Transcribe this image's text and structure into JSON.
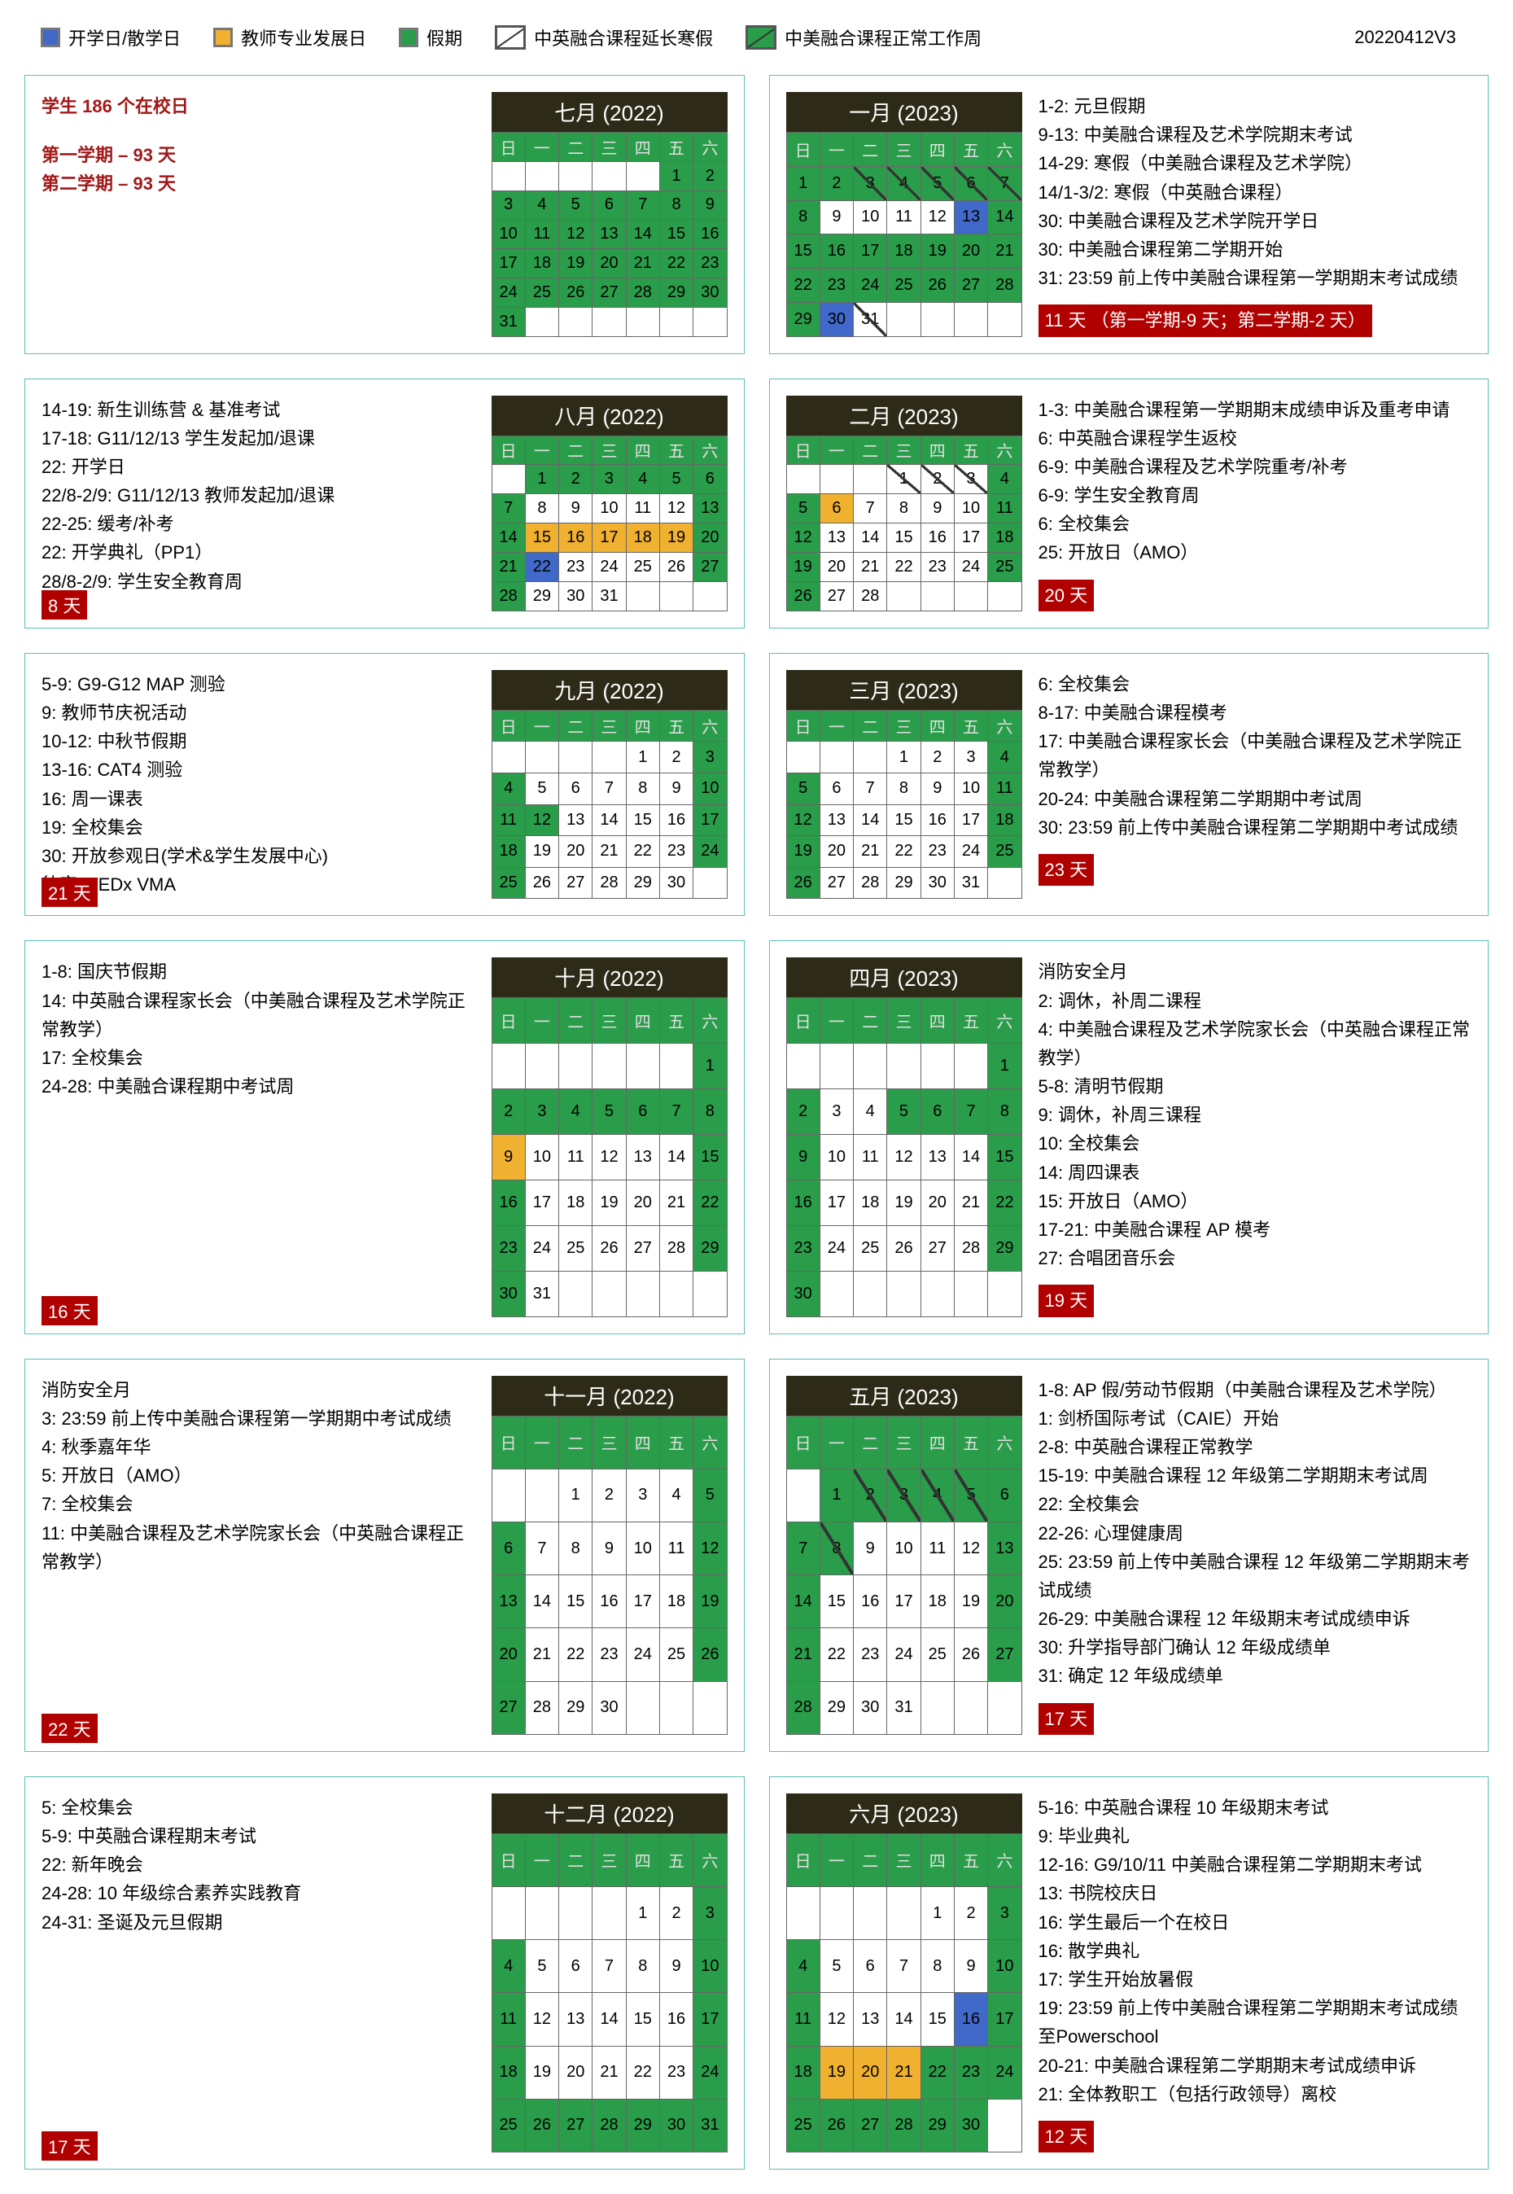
{
  "legend": {
    "school_day": "开学日/散学日",
    "teacher_dev": "教师专业发展日",
    "holiday": "假期",
    "ext_winter": "中英融合课程延长寒假",
    "normal_work": "中美融合课程正常工作周",
    "version": "20220412V3"
  },
  "summary": {
    "total": "学生 186 个在校日",
    "sem1": "第一学期 – 93 天",
    "sem2": "第二学期 – 93 天"
  },
  "dowZh": [
    "日",
    "一",
    "二",
    "三",
    "四",
    "五",
    "六"
  ],
  "months": [
    {
      "title": "七月 (2022)",
      "start": 5,
      "days": 31,
      "styles": {
        "default": "c-g"
      },
      "notesLeft": "",
      "notesRight": "",
      "badge": ""
    },
    {
      "title": "一月 (2023)",
      "start": 0,
      "days": 31,
      "styles": {
        "1": "c-g",
        "2": "c-g",
        "3": "c-dg",
        "4": "c-dg",
        "5": "c-dg",
        "6": "c-dg",
        "7": "c-dg",
        "8": "c-g",
        "9": "c-w",
        "10": "c-w",
        "11": "c-w",
        "12": "c-w",
        "13": "c-b",
        "14": "c-g",
        "15": "c-g",
        "16": "c-g",
        "17": "c-g",
        "18": "c-g",
        "19": "c-g",
        "20": "c-g",
        "21": "c-g",
        "22": "c-g",
        "23": "c-g",
        "24": "c-g",
        "25": "c-g",
        "26": "c-g",
        "27": "c-g",
        "28": "c-g",
        "29": "c-g",
        "30": "c-b",
        "31": "c-dw"
      },
      "notesRight": "1-2: 元旦假期\n9-13: 中美融合课程及艺术学院期末考试\n14-29: 寒假（中美融合课程及艺术学院）\n14/1-3/2: 寒假（中英融合课程）\n30: 中美融合课程及艺术学院开学日\n30: 中美融合课程第二学期开始\n31: 23:59 前上传中美融合课程第一学期期末考试成绩",
      "badge": "11 天 （第一学期-9 天；第二学期-2 天）"
    },
    {
      "title": "八月 (2022)",
      "start": 1,
      "days": 31,
      "styles": {
        "1": "c-g",
        "2": "c-g",
        "3": "c-g",
        "4": "c-g",
        "5": "c-g",
        "6": "c-g",
        "7": "c-g",
        "8": "c-w",
        "9": "c-w",
        "10": "c-w",
        "11": "c-w",
        "12": "c-w",
        "13": "c-g",
        "14": "c-g",
        "15": "c-y",
        "16": "c-y",
        "17": "c-y",
        "18": "c-y",
        "19": "c-y",
        "20": "c-g",
        "21": "c-g",
        "22": "c-b",
        "23": "c-w",
        "24": "c-w",
        "25": "c-w",
        "26": "c-w",
        "27": "c-g",
        "28": "c-g",
        "29": "c-w",
        "30": "c-w",
        "31": "c-w"
      },
      "notesLeft": "14-19: 新生训练营 & 基准考试\n17-18: G11/12/13 学生发起加/退课\n22: 开学日\n22/8-2/9: G11/12/13 教师发起加/退课\n22-25: 缓考/补考\n22: 开学典礼（PP1）\n28/8-2/9: 学生安全教育周",
      "badge": "8 天"
    },
    {
      "title": "二月 (2023)",
      "start": 3,
      "days": 28,
      "styles": {
        "1": "c-dw",
        "2": "c-dw",
        "3": "c-dw",
        "4": "c-g",
        "5": "c-g",
        "6": "c-y",
        "7": "c-w",
        "8": "c-w",
        "9": "c-w",
        "10": "c-w",
        "11": "c-g",
        "12": "c-g",
        "13": "c-w",
        "14": "c-w",
        "15": "c-w",
        "16": "c-w",
        "17": "c-w",
        "18": "c-g",
        "19": "c-g",
        "20": "c-w",
        "21": "c-w",
        "22": "c-w",
        "23": "c-w",
        "24": "c-w",
        "25": "c-g",
        "26": "c-g",
        "27": "c-w",
        "28": "c-w"
      },
      "notesRight": "1-3: 中美融合课程第一学期期末成绩申诉及重考申请\n6: 中英融合课程学生返校\n6-9: 中美融合课程及艺术学院重考/补考\n6-9: 学生安全教育周\n6: 全校集会\n25: 开放日（AMO）",
      "badge": "20 天"
    },
    {
      "title": "九月 (2022)",
      "start": 4,
      "days": 30,
      "styles": {
        "1": "c-w",
        "2": "c-w",
        "3": "c-g",
        "4": "c-g",
        "5": "c-w",
        "6": "c-w",
        "7": "c-w",
        "8": "c-w",
        "9": "c-w",
        "10": "c-g",
        "11": "c-g",
        "12": "c-g",
        "13": "c-w",
        "14": "c-w",
        "15": "c-w",
        "16": "c-w",
        "17": "c-g",
        "18": "c-g",
        "19": "c-w",
        "20": "c-w",
        "21": "c-w",
        "22": "c-w",
        "23": "c-w",
        "24": "c-g",
        "25": "c-g",
        "26": "c-w",
        "27": "c-w",
        "28": "c-w",
        "29": "c-w",
        "30": "c-w"
      },
      "notesLeft": "5-9:  G9-G12 MAP 测验\n9: 教师节庆祝活动\n10-12: 中秋节假期\n13-16: CAT4 测验\n16: 周一课表\n19: 全校集会\n30: 开放参观日(学术&学生发展中心)\n待定:  TEDx VMA",
      "badge": "21 天"
    },
    {
      "title": "三月 (2023)",
      "start": 3,
      "days": 31,
      "styles": {
        "1": "c-w",
        "2": "c-w",
        "3": "c-w",
        "4": "c-g",
        "5": "c-g",
        "6": "c-w",
        "7": "c-w",
        "8": "c-w",
        "9": "c-w",
        "10": "c-w",
        "11": "c-g",
        "12": "c-g",
        "13": "c-w",
        "14": "c-w",
        "15": "c-w",
        "16": "c-w",
        "17": "c-w",
        "18": "c-g",
        "19": "c-g",
        "20": "c-w",
        "21": "c-w",
        "22": "c-w",
        "23": "c-w",
        "24": "c-w",
        "25": "c-g",
        "26": "c-g",
        "27": "c-w",
        "28": "c-w",
        "29": "c-w",
        "30": "c-w",
        "31": "c-w"
      },
      "notesRight": "6: 全校集会\n8-17: 中美融合课程模考\n17: 中美融合课程家长会（中美融合课程及艺术学院正常教学）\n20-24: 中美融合课程第二学期期中考试周\n30: 23:59 前上传中美融合课程第二学期期中考试成绩",
      "badge": "23 天"
    },
    {
      "title": "十月 (2022)",
      "start": 6,
      "days": 31,
      "styles": {
        "1": "c-g",
        "2": "c-g",
        "3": "c-g",
        "4": "c-g",
        "5": "c-g",
        "6": "c-g",
        "7": "c-g",
        "8": "c-g",
        "9": "c-y",
        "10": "c-w",
        "11": "c-w",
        "12": "c-w",
        "13": "c-w",
        "14": "c-w",
        "15": "c-g",
        "16": "c-g",
        "17": "c-w",
        "18": "c-w",
        "19": "c-w",
        "20": "c-w",
        "21": "c-w",
        "22": "c-g",
        "23": "c-g",
        "24": "c-w",
        "25": "c-w",
        "26": "c-w",
        "27": "c-w",
        "28": "c-w",
        "29": "c-g",
        "30": "c-g",
        "31": "c-w"
      },
      "notesLeft": "1-8: 国庆节假期\n14: 中英融合课程家长会（中美融合课程及艺术学院正常教学）\n17: 全校集会\n24-28: 中美融合课程期中考试周",
      "badge": "16 天"
    },
    {
      "title": "四月 (2023)",
      "start": 6,
      "days": 30,
      "styles": {
        "1": "c-g",
        "2": "c-g",
        "3": "c-w",
        "4": "c-w",
        "5": "c-g",
        "6": "c-g",
        "7": "c-g",
        "8": "c-g",
        "9": "c-g",
        "10": "c-w",
        "11": "c-w",
        "12": "c-w",
        "13": "c-w",
        "14": "c-w",
        "15": "c-g",
        "16": "c-g",
        "17": "c-w",
        "18": "c-w",
        "19": "c-w",
        "20": "c-w",
        "21": "c-w",
        "22": "c-g",
        "23": "c-g",
        "24": "c-w",
        "25": "c-w",
        "26": "c-w",
        "27": "c-w",
        "28": "c-w",
        "29": "c-g",
        "30": "c-g"
      },
      "notesRight": "消防安全月\n2: 调休，补周二课程\n4: 中美融合课程及艺术学院家长会（中英融合课程正常教学）\n5-8: 清明节假期\n9: 调休，补周三课程\n10: 全校集会\n14: 周四课表\n15: 开放日（AMO）\n17-21: 中美融合课程 AP 模考\n27: 合唱团音乐会",
      "badge": "19 天"
    },
    {
      "title": "十一月 (2022)",
      "start": 2,
      "days": 30,
      "styles": {
        "1": "c-w",
        "2": "c-w",
        "3": "c-w",
        "4": "c-w",
        "5": "c-g",
        "6": "c-g",
        "7": "c-w",
        "8": "c-w",
        "9": "c-w",
        "10": "c-w",
        "11": "c-w",
        "12": "c-g",
        "13": "c-g",
        "14": "c-w",
        "15": "c-w",
        "16": "c-w",
        "17": "c-w",
        "18": "c-w",
        "19": "c-g",
        "20": "c-g",
        "21": "c-w",
        "22": "c-w",
        "23": "c-w",
        "24": "c-w",
        "25": "c-w",
        "26": "c-g",
        "27": "c-g",
        "28": "c-w",
        "29": "c-w",
        "30": "c-w"
      },
      "notesLeft": "消防安全月\n3: 23:59 前上传中美融合课程第一学期期中考试成绩\n4: 秋季嘉年华\n5: 开放日（AMO）\n7: 全校集会\n11: 中美融合课程及艺术学院家长会（中英融合课程正常教学）",
      "badge": "22 天"
    },
    {
      "title": "五月 (2023)",
      "start": 1,
      "days": 31,
      "styles": {
        "1": "c-g",
        "2": "c-dg",
        "3": "c-dg",
        "4": "c-dg",
        "5": "c-dg",
        "6": "c-g",
        "7": "c-g",
        "8": "c-dg",
        "9": "c-w",
        "10": "c-w",
        "11": "c-w",
        "12": "c-w",
        "13": "c-g",
        "14": "c-g",
        "15": "c-w",
        "16": "c-w",
        "17": "c-w",
        "18": "c-w",
        "19": "c-w",
        "20": "c-g",
        "21": "c-g",
        "22": "c-w",
        "23": "c-w",
        "24": "c-w",
        "25": "c-w",
        "26": "c-w",
        "27": "c-g",
        "28": "c-g",
        "29": "c-w",
        "30": "c-w",
        "31": "c-w"
      },
      "notesRight": "1-8: AP 假/劳动节假期（中美融合课程及艺术学院）\n1: 剑桥国际考试（CAIE）开始\n2-8: 中英融合课程正常教学\n15-19: 中美融合课程 12 年级第二学期期末考试周\n22: 全校集会\n22-26: 心理健康周\n25: 23:59 前上传中美融合课程 12 年级第二学期期末考试成绩\n26-29: 中美融合课程 12 年级期末考试成绩申诉\n30: 升学指导部门确认 12 年级成绩单\n31: 确定 12 年级成绩单",
      "badge": "17 天"
    },
    {
      "title": "十二月 (2022)",
      "start": 4,
      "days": 31,
      "styles": {
        "1": "c-w",
        "2": "c-w",
        "3": "c-g",
        "4": "c-g",
        "5": "c-w",
        "6": "c-w",
        "7": "c-w",
        "8": "c-w",
        "9": "c-w",
        "10": "c-g",
        "11": "c-g",
        "12": "c-w",
        "13": "c-w",
        "14": "c-w",
        "15": "c-w",
        "16": "c-w",
        "17": "c-g",
        "18": "c-g",
        "19": "c-w",
        "20": "c-w",
        "21": "c-w",
        "22": "c-w",
        "23": "c-w",
        "24": "c-g",
        "25": "c-g",
        "26": "c-g",
        "27": "c-g",
        "28": "c-g",
        "29": "c-g",
        "30": "c-g",
        "31": "c-g"
      },
      "notesLeft": "5: 全校集会\n5-9: 中英融合课程期末考试\n22: 新年晚会\n24-28: 10 年级综合素养实践教育\n24-31: 圣诞及元旦假期",
      "badge": "17 天"
    },
    {
      "title": "六月 (2023)",
      "start": 4,
      "days": 30,
      "styles": {
        "1": "c-w",
        "2": "c-w",
        "3": "c-g",
        "4": "c-g",
        "5": "c-w",
        "6": "c-w",
        "7": "c-w",
        "8": "c-w",
        "9": "c-w",
        "10": "c-g",
        "11": "c-g",
        "12": "c-w",
        "13": "c-w",
        "14": "c-w",
        "15": "c-w",
        "16": "c-b",
        "17": "c-g",
        "18": "c-g",
        "19": "c-y",
        "20": "c-y",
        "21": "c-y",
        "22": "c-g",
        "23": "c-g",
        "24": "c-g",
        "25": "c-g",
        "26": "c-g",
        "27": "c-g",
        "28": "c-g",
        "29": "c-g",
        "30": "c-g"
      },
      "notesRight": "5-16: 中英融合课程 10 年级期末考试\n9: 毕业典礼\n12-16: G9/10/11 中美融合课程第二学期期末考试\n13: 书院校庆日\n16: 学生最后一个在校日\n16: 散学典礼\n17: 学生开始放暑假\n19: 23:59 前上传中美融合课程第二学期期末考试成绩至Powerschool\n20-21: 中美融合课程第二学期期末考试成绩申诉\n21: 全体教职工（包括行政领导）离校",
      "badge": "12 天"
    }
  ]
}
